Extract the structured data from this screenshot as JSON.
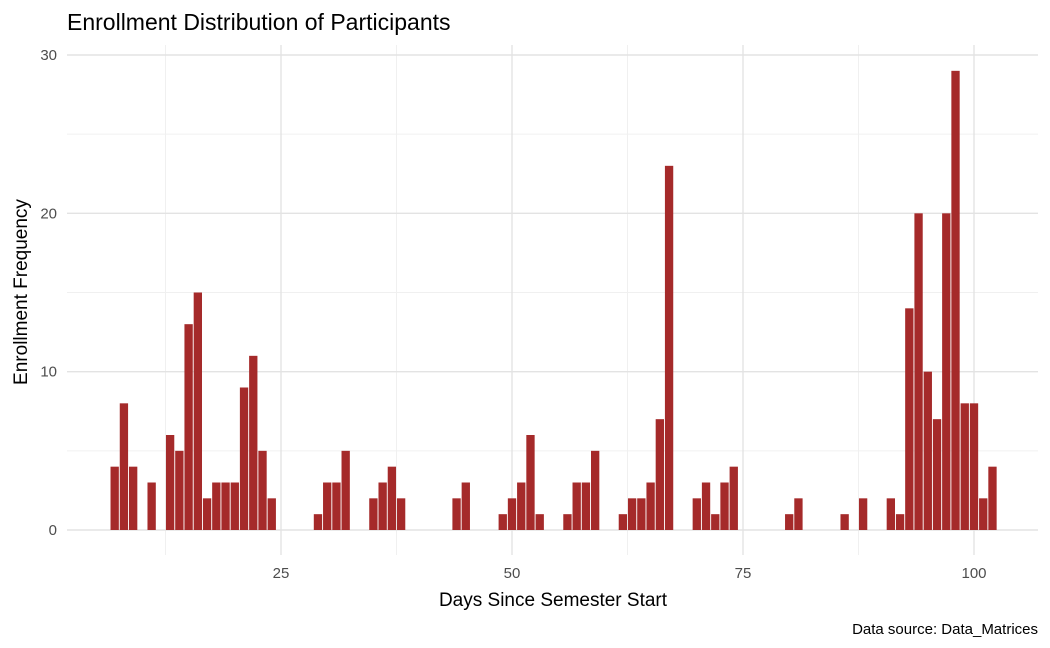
{
  "chart_data": {
    "type": "bar",
    "title": "Enrollment Distribution of Participants",
    "xlabel": "Days Since Semester Start",
    "ylabel": "Enrollment Frequency",
    "caption": "Data source: Data_Matrices",
    "xlim": [
      3.5,
      104.5
    ],
    "ylim": [
      0,
      30
    ],
    "x_ticks": [
      25,
      50,
      75,
      100
    ],
    "y_ticks": [
      0,
      10,
      20,
      30
    ],
    "grid": true,
    "legend": "none",
    "bar_color": "#A52A2A",
    "x": [
      7,
      8,
      9,
      11,
      13,
      14,
      15,
      16,
      17,
      18,
      19,
      20,
      21,
      22,
      23,
      24,
      29,
      30,
      31,
      32,
      35,
      36,
      37,
      38,
      44,
      45,
      49,
      50,
      51,
      52,
      53,
      56,
      57,
      58,
      59,
      62,
      63,
      64,
      65,
      66,
      67,
      70,
      71,
      72,
      73,
      74,
      80,
      81,
      86,
      88,
      91,
      92,
      93,
      94,
      95,
      96,
      97,
      98,
      99,
      100,
      101,
      102
    ],
    "values": [
      4,
      8,
      4,
      3,
      6,
      5,
      13,
      15,
      2,
      3,
      3,
      3,
      9,
      11,
      5,
      2,
      1,
      3,
      3,
      5,
      2,
      3,
      4,
      2,
      2,
      3,
      1,
      2,
      3,
      6,
      1,
      1,
      3,
      3,
      5,
      1,
      2,
      2,
      3,
      7,
      23,
      2,
      3,
      1,
      3,
      4,
      1,
      2,
      1,
      2,
      2,
      1,
      14,
      20,
      10,
      7,
      20,
      29,
      8,
      8,
      2,
      4
    ]
  }
}
